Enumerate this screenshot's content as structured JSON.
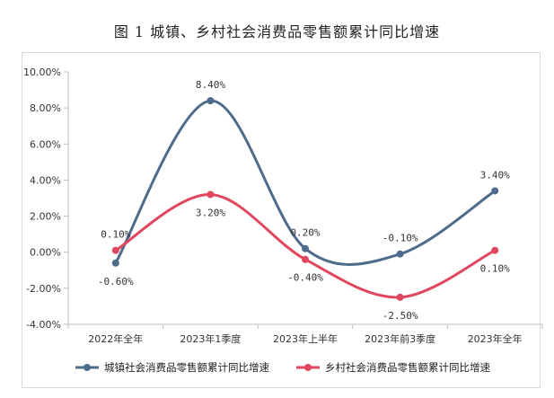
{
  "title": "图 1   城镇、乡村社会消费品零售额累计同比增速",
  "chart_data": {
    "type": "line",
    "title": "图 1   城镇、乡村社会消费品零售额累计同比增速",
    "categories": [
      "2022年全年",
      "2023年1季度",
      "2023年上半年",
      "2023年前3季度",
      "2023年全年"
    ],
    "ylim": [
      -4,
      10
    ],
    "yticks": [
      -4,
      -2,
      0,
      2,
      4,
      6,
      8,
      10
    ],
    "ytick_labels": [
      "-4.00%",
      "-2.00%",
      "0.00%",
      "2.00%",
      "4.00%",
      "6.00%",
      "8.00%",
      "10.00%"
    ],
    "grid": false,
    "legend_position": "bottom",
    "series": [
      {
        "name": "城镇社会消费品零售额累计同比增速",
        "color": "#4f6b8c",
        "values": [
          -0.6,
          8.4,
          0.2,
          -0.1,
          3.4
        ],
        "labels": [
          "-0.60%",
          "8.40%",
          "0.20%",
          "-0.10%",
          "3.40%"
        ]
      },
      {
        "name": "乡村社会消费品零售额累计同比增速",
        "color": "#e0475f",
        "values": [
          0.1,
          3.2,
          -0.4,
          -2.5,
          0.1
        ],
        "labels": [
          "0.10%",
          "3.20%",
          "-0.40%",
          "-2.50%",
          "0.10%"
        ]
      }
    ]
  }
}
